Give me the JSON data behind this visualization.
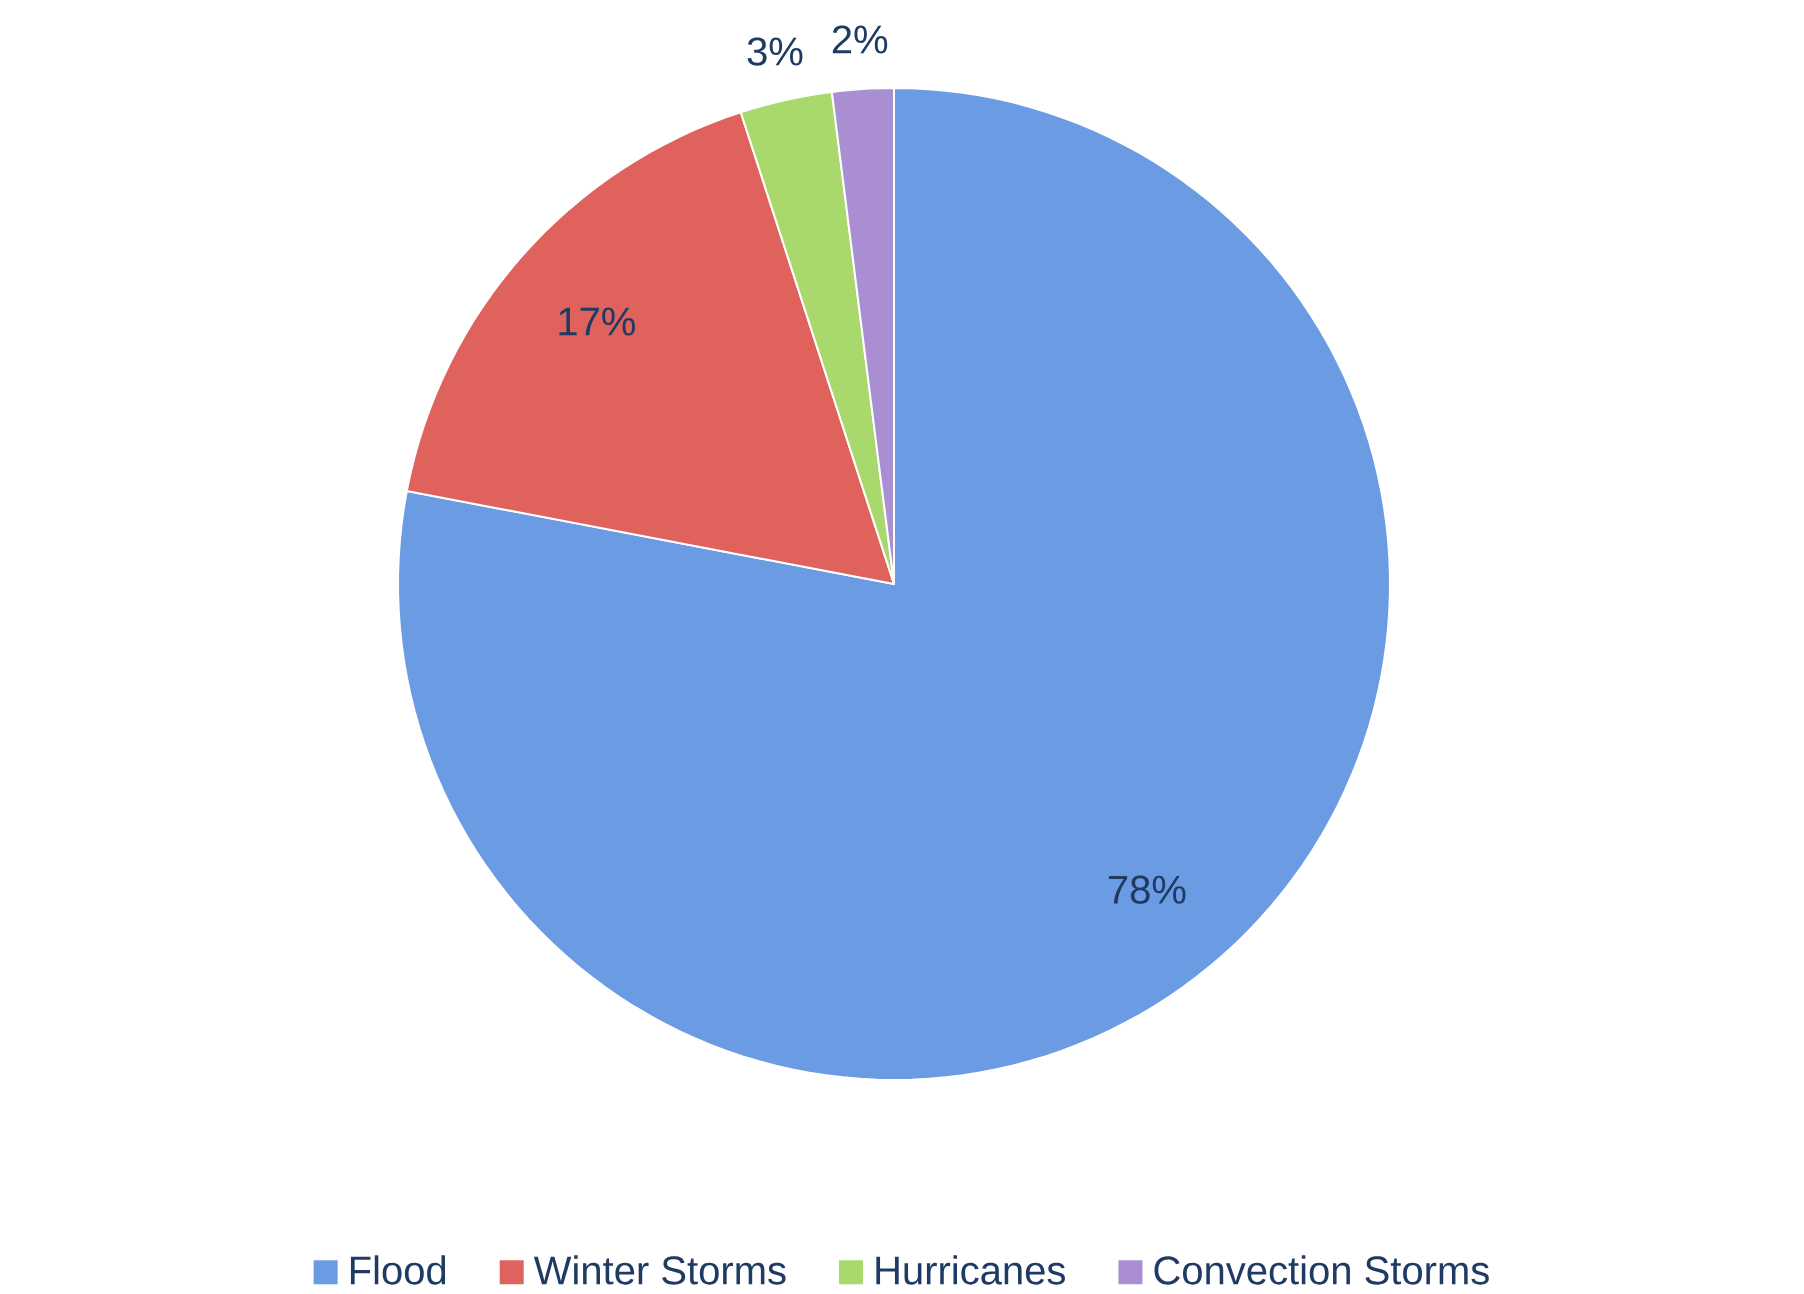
{
  "chart_data": {
    "type": "pie",
    "categories": [
      "Flood",
      "Winter Storms",
      "Hurricanes",
      "Convection Storms"
    ],
    "values": [
      78,
      17,
      3,
      2
    ],
    "colors": [
      "#6b9be2",
      "#e0625c",
      "#a9d86c",
      "#a98ed2"
    ],
    "value_labels": [
      "78%",
      "17%",
      "3%",
      "2%"
    ],
    "legend": "bottom"
  }
}
